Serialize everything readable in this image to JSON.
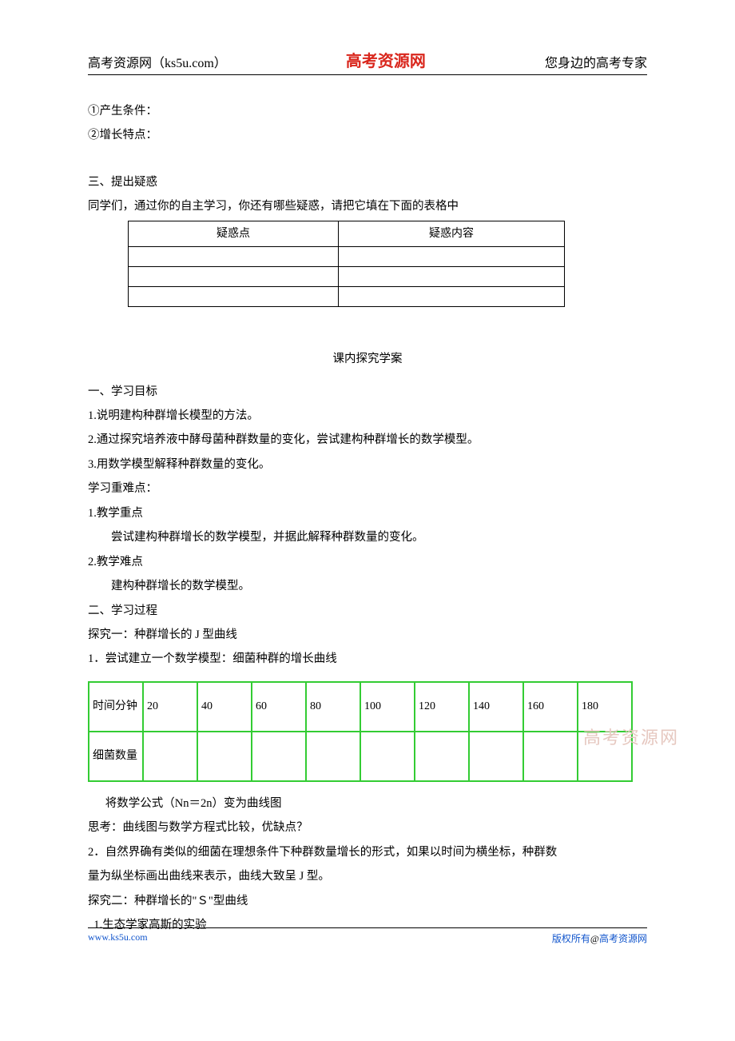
{
  "header": {
    "left": "高考资源网（ks5u.com）",
    "center": "高考资源网",
    "right": "您身边的高考专家"
  },
  "lines": {
    "l1": "①产生条件：",
    "l2": "②增长特点：",
    "l3": "三、提出疑惑",
    "l4": "同学们，通过你的自主学习，你还有哪些疑惑，请把它填在下面的表格中"
  },
  "doubt_table": {
    "headers": [
      "疑惑点",
      "疑惑内容"
    ],
    "rows": [
      [
        "",
        ""
      ],
      [
        "",
        ""
      ],
      [
        "",
        ""
      ]
    ]
  },
  "center_title": "课内探究学案",
  "study": {
    "s1": "一、学习目标",
    "s2": "1.说明建构种群增长模型的方法。",
    "s3": "2.通过探究培养液中酵母菌种群数量的变化，尝试建构种群增长的数学模型。",
    "s4": "3.用数学模型解释种群数量的变化。",
    "s5": "学习重难点：",
    "s6": "1.教学重点",
    "s7": "尝试建构种群增长的数学模型，并据此解释种群数量的变化。",
    "s8": "2.教学难点",
    "s9": "建构种群增长的数学模型。",
    "s10": "二、学习过程",
    "s11": "探究一：种群增长的 J 型曲线",
    "s12": "1．尝试建立一个数学模型：细菌种群的增长曲线"
  },
  "green_table": {
    "row1_label": "时间分钟",
    "row1_values": [
      "20",
      "40",
      "60",
      "80",
      "100",
      "120",
      "140",
      "160",
      "180"
    ],
    "row2_label": "细菌数量",
    "row2_values": [
      "",
      "",
      "",
      "",
      "",
      "",
      "",
      "",
      ""
    ],
    "border_color": "#33cc33"
  },
  "after": {
    "a1": "将数学公式（Nn＝2n）变为曲线图",
    "a2": "思考：曲线图与数学方程式比较，优缺点？",
    "a3": "2．自然界确有类似的细菌在理想条件下种群数量增长的形式，如果以时间为横坐标，种群数",
    "a4": "量为纵坐标画出曲线来表示，曲线大致呈 J 型。",
    "a5": "探究二：种群增长的\"Ｓ\"型曲线",
    "a6": "1.生态学家高斯的实验"
  },
  "watermark": "高考资源网",
  "footer": {
    "left": "www.ks5u.com",
    "right_prefix": "版权所有",
    "right_at": "@",
    "right_suffix": "高考资源网"
  }
}
